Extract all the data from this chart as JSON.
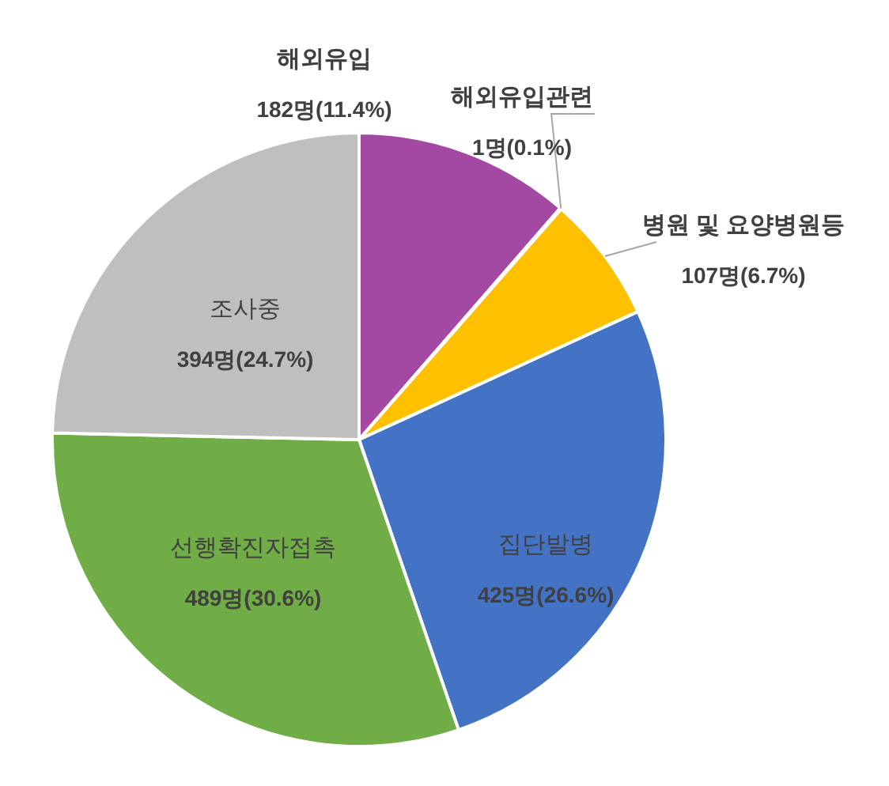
{
  "chart_data": {
    "type": "pie",
    "categories": [
      "해외유입",
      "해외유입관련",
      "병원 및 요양병원등",
      "집단발병",
      "선행확진자접촉",
      "조사중"
    ],
    "values": [
      182,
      1,
      107,
      425,
      489,
      394
    ],
    "value_labels": [
      "182명(11.4%)",
      "1명(0.1%)",
      "107명(6.7%)",
      "425명(26.6%)",
      "489명(30.6%)",
      "394명(24.7%)"
    ],
    "colors": [
      "#a349a4",
      "#ed7d31",
      "#ffc000",
      "#4472c4",
      "#70ad47",
      "#bfbfbf"
    ],
    "legend": false
  }
}
